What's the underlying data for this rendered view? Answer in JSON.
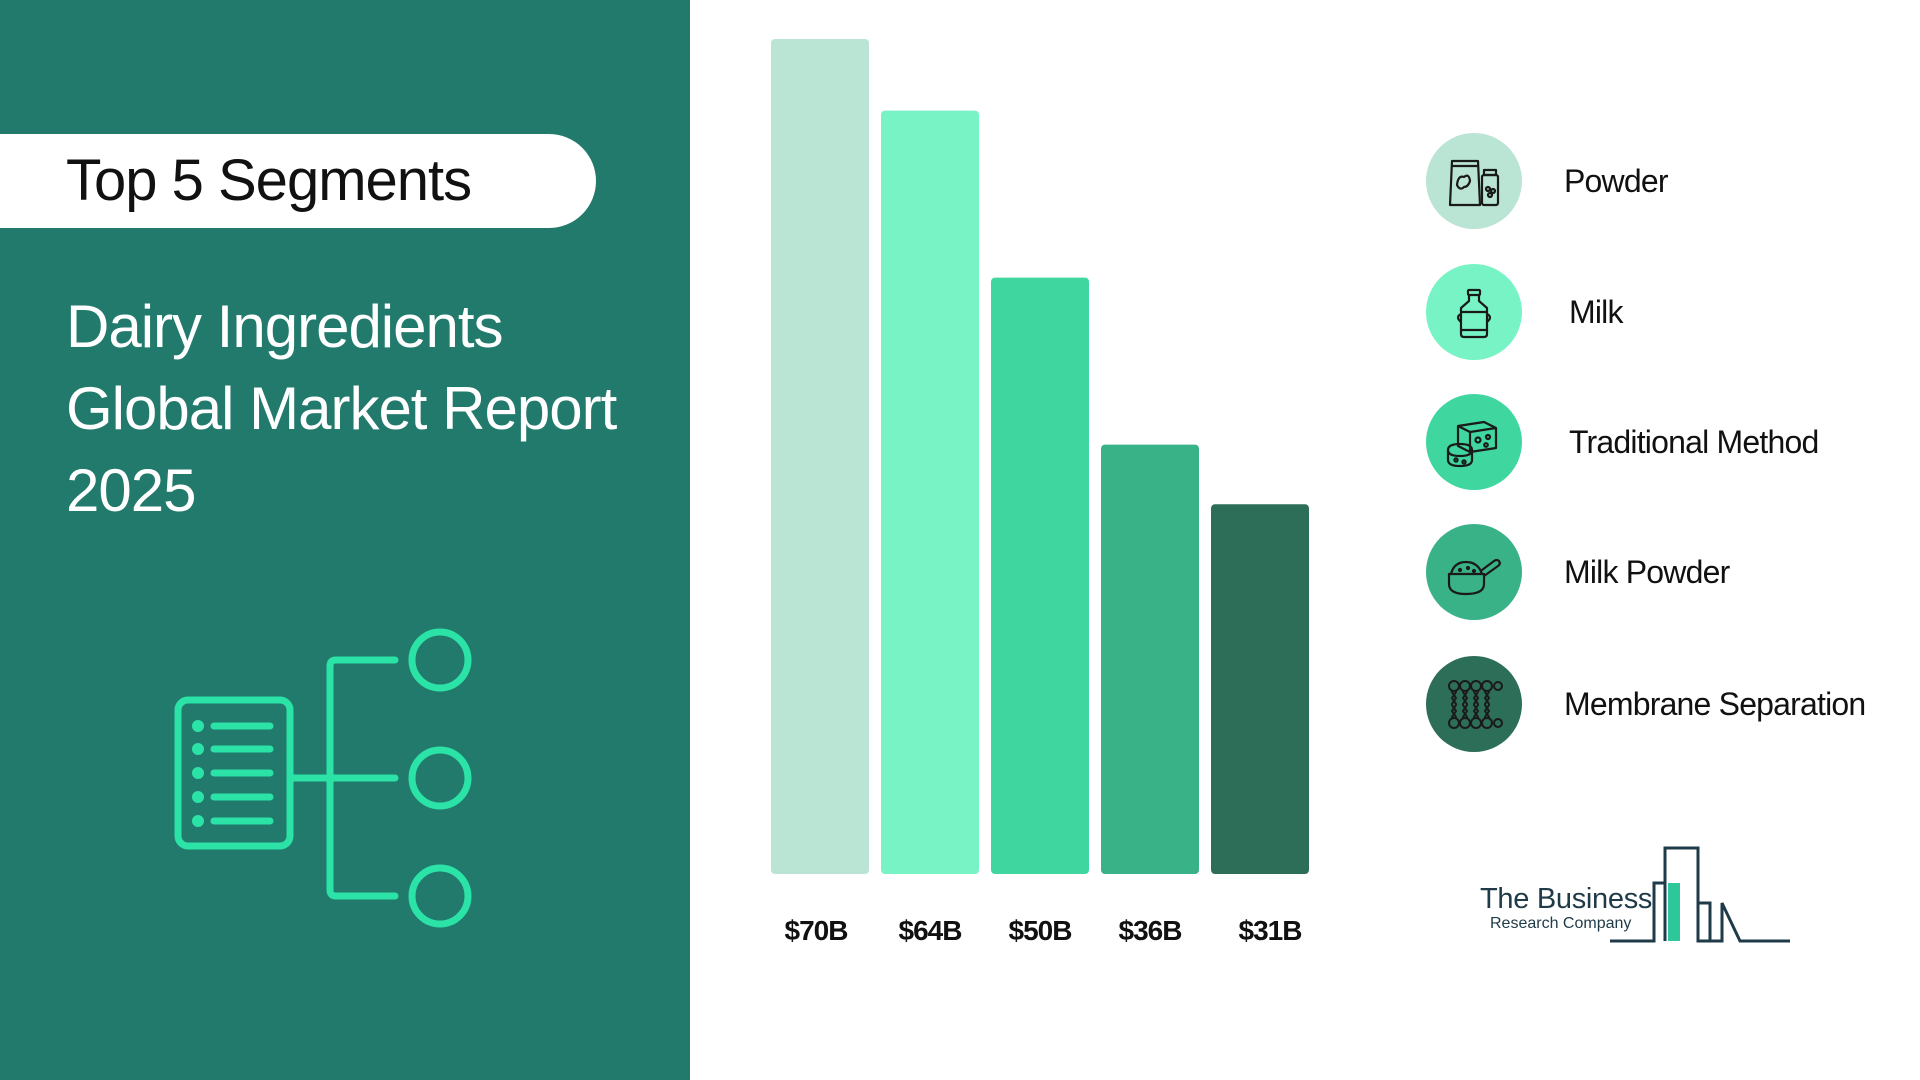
{
  "header": {
    "pill_title": "Top 5 Segments",
    "report_title_lines": [
      "Dairy Ingredients",
      "Global Market Report",
      "2025"
    ]
  },
  "chart_data": {
    "type": "bar",
    "categories": [
      "Powder",
      "Milk",
      "Traditional Method",
      "Milk Powder",
      "Membrane Separation"
    ],
    "values": [
      70,
      64,
      50,
      36,
      31
    ],
    "value_labels": [
      "$70B",
      "$64B",
      "$50B",
      "$36B",
      "$31B"
    ],
    "unit": "$B",
    "title": "",
    "xlabel": "",
    "ylabel": "",
    "ylim": [
      0,
      70
    ],
    "grid": false,
    "colors": [
      "#bae4d4",
      "#78f3c6",
      "#40d6a0",
      "#3ab287",
      "#2d6e58"
    ]
  },
  "legend": {
    "items": [
      {
        "label": "Powder",
        "icon": "protein-powder-icon",
        "color": "#bae4d4"
      },
      {
        "label": "Milk",
        "icon": "milk-can-icon",
        "color": "#78f3c6"
      },
      {
        "label": "Traditional Method",
        "icon": "cheese-icon",
        "color": "#40d6a0"
      },
      {
        "label": "Milk Powder",
        "icon": "powder-scoop-icon",
        "color": "#3ab287"
      },
      {
        "label": "Membrane Separation",
        "icon": "membrane-icon",
        "color": "#2d6e58"
      }
    ]
  },
  "logo": {
    "name": "The Business",
    "sub": "Research Company"
  },
  "colors": {
    "panel": "#217a6b",
    "accent": "#2be3a6",
    "text_dark": "#111111"
  }
}
